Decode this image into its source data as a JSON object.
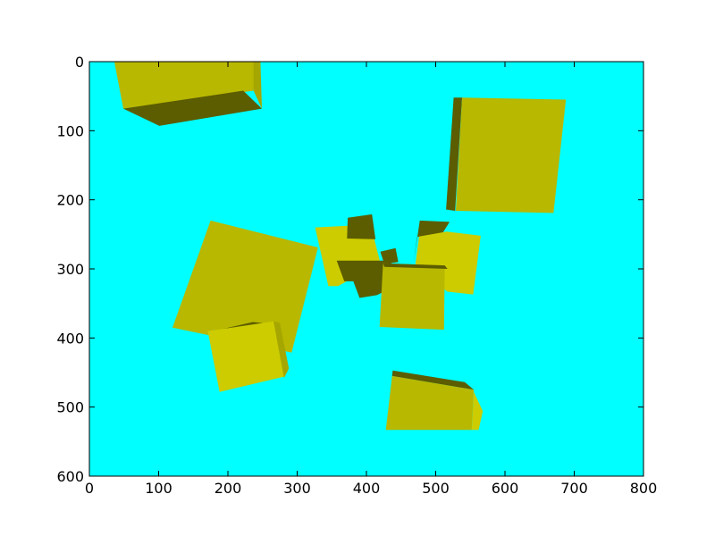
{
  "chart_data": {
    "type": "image",
    "title": "",
    "xlabel": "",
    "ylabel": "",
    "xlim": [
      0,
      800
    ],
    "ylim": [
      600,
      0
    ],
    "y_inverted": true,
    "grid": false,
    "background_color": "#00ffff",
    "xticks": [
      {
        "value": 0,
        "label": "0"
      },
      {
        "value": 100,
        "label": "100"
      },
      {
        "value": 200,
        "label": "200"
      },
      {
        "value": 300,
        "label": "300"
      },
      {
        "value": 400,
        "label": "400"
      },
      {
        "value": 500,
        "label": "500"
      },
      {
        "value": 600,
        "label": "600"
      },
      {
        "value": 700,
        "label": "700"
      },
      {
        "value": 800,
        "label": "800"
      }
    ],
    "yticks": [
      {
        "value": 0,
        "label": "0"
      },
      {
        "value": 100,
        "label": "100"
      },
      {
        "value": 200,
        "label": "200"
      },
      {
        "value": 300,
        "label": "300"
      },
      {
        "value": 400,
        "label": "400"
      },
      {
        "value": 500,
        "label": "500"
      },
      {
        "value": 600,
        "label": "600"
      }
    ],
    "colors": {
      "face_light": "#cccc00",
      "face_mid": "#b8b800",
      "face_dark": "#5c5c00",
      "face_side": "#a6a600"
    },
    "cubes": [
      {
        "name": "cube-1",
        "faces": [
          {
            "shade": "face_mid",
            "points": [
              [
                36,
                0
              ],
              [
                240,
                0
              ],
              [
                237,
                42
              ],
              [
                49,
                68
              ]
            ]
          },
          {
            "shade": "face_side",
            "points": [
              [
                237,
                0
              ],
              [
                247,
                0
              ],
              [
                249,
                68
              ],
              [
                237,
                42
              ]
            ]
          },
          {
            "shade": "face_dark",
            "points": [
              [
                49,
                68
              ],
              [
                222,
                42
              ],
              [
                249,
                68
              ],
              [
                101,
                93
              ]
            ]
          }
        ]
      },
      {
        "name": "cube-2",
        "faces": [
          {
            "shade": "face_dark",
            "points": [
              [
                526,
                52
              ],
              [
                538,
                52
              ],
              [
                528,
                216
              ],
              [
                515,
                214
              ]
            ]
          },
          {
            "shade": "face_mid",
            "points": [
              [
                538,
                52
              ],
              [
                688,
                55
              ],
              [
                670,
                219
              ],
              [
                529,
                216
              ]
            ]
          }
        ]
      },
      {
        "name": "cube-3",
        "faces": [
          {
            "shade": "face_mid",
            "points": [
              [
                175,
                230
              ],
              [
                330,
                269
              ],
              [
                292,
                421
              ],
              [
                120,
                385
              ]
            ]
          }
        ]
      },
      {
        "name": "cube-4",
        "faces": [
          {
            "shade": "face_light",
            "points": [
              [
                326,
                240
              ],
              [
                406,
                236
              ],
              [
                420,
                291
              ],
              [
                359,
                325
              ],
              [
                345,
                325
              ]
            ]
          },
          {
            "shade": "face_dark",
            "points": [
              [
                373,
                226
              ],
              [
                408,
                221
              ],
              [
                413,
                257
              ],
              [
                372,
                256
              ]
            ]
          },
          {
            "shade": "face_dark",
            "points": [
              [
                357,
                288
              ],
              [
                435,
                288
              ],
              [
                442,
                325
              ],
              [
                415,
                338
              ],
              [
                390,
                342
              ],
              [
                381,
                318
              ],
              [
                368,
                318
              ]
            ]
          }
        ]
      },
      {
        "name": "cube-5",
        "faces": [
          {
            "shade": "face_dark",
            "points": [
              [
                420,
                275
              ],
              [
                442,
                270
              ],
              [
                446,
                290
              ],
              [
                426,
                293
              ]
            ]
          }
        ]
      },
      {
        "name": "cube-6",
        "faces": [
          {
            "shade": "face_dark",
            "points": [
              [
                477,
                230
              ],
              [
                520,
                232
              ],
              [
                510,
                248
              ],
              [
                473,
                254
              ],
              [
                468,
                292
              ]
            ]
          },
          {
            "shade": "face_light",
            "points": [
              [
                476,
                253
              ],
              [
                516,
                246
              ],
              [
                565,
                252
              ],
              [
                554,
                337
              ],
              [
                517,
                333
              ],
              [
                470,
                298
              ]
            ]
          }
        ]
      },
      {
        "name": "cube-7",
        "faces": [
          {
            "shade": "face_mid",
            "points": [
              [
                424,
                292
              ],
              [
                513,
                295
              ],
              [
                512,
                388
              ],
              [
                419,
                384
              ]
            ]
          },
          {
            "shade": "face_dark",
            "points": [
              [
                424,
                292
              ],
              [
                513,
                295
              ],
              [
                517,
                300
              ],
              [
                426,
                297
              ]
            ]
          }
        ]
      },
      {
        "name": "cube-8",
        "faces": [
          {
            "shade": "face_dark",
            "points": [
              [
                171,
                392
              ],
              [
                236,
                377
              ],
              [
                268,
                380
              ],
              [
                178,
                392
              ]
            ]
          },
          {
            "shade": "face_light",
            "points": [
              [
                171,
                390
              ],
              [
                266,
                376
              ],
              [
                281,
                456
              ],
              [
                188,
                478
              ]
            ]
          },
          {
            "shade": "face_side",
            "points": [
              [
                266,
                376
              ],
              [
                275,
                378
              ],
              [
                288,
                444
              ],
              [
                281,
                458
              ]
            ]
          }
        ]
      },
      {
        "name": "cube-9",
        "faces": [
          {
            "shade": "face_dark",
            "points": [
              [
                438,
                447
              ],
              [
                542,
                464
              ],
              [
                555,
                475
              ],
              [
                437,
                455
              ]
            ]
          },
          {
            "shade": "face_mid",
            "points": [
              [
                437,
                455
              ],
              [
                555,
                475
              ],
              [
                552,
                533
              ],
              [
                428,
                533
              ]
            ]
          },
          {
            "shade": "face_light",
            "points": [
              [
                555,
                478
              ],
              [
                568,
                506
              ],
              [
                562,
                533
              ],
              [
                552,
                533
              ]
            ]
          }
        ]
      }
    ]
  }
}
